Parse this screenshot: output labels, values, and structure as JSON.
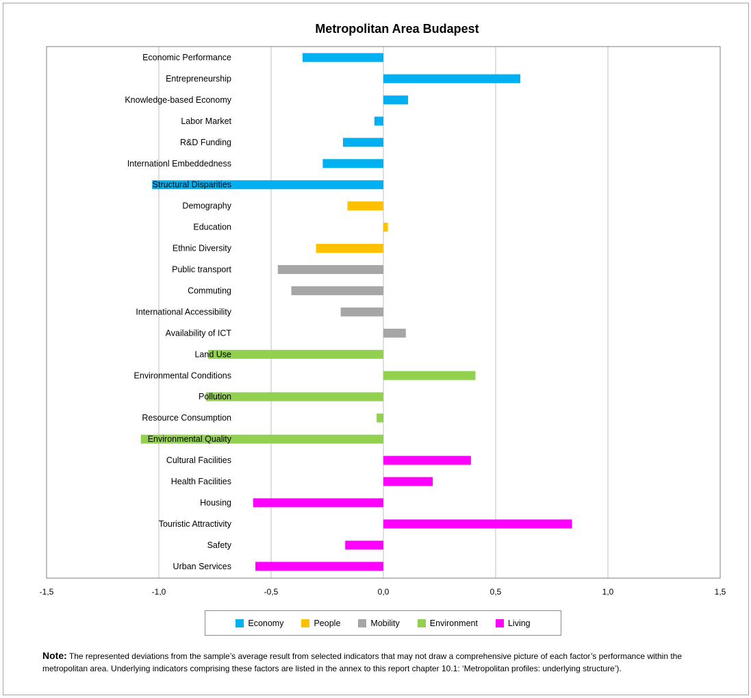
{
  "chart_data": {
    "type": "bar",
    "orientation": "horizontal",
    "title": "Metropolitan Area Budapest",
    "xlim": [
      -1.5,
      1.5
    ],
    "x_ticks": [
      "-1,5",
      "-1,0",
      "-0,5",
      "0,0",
      "0,5",
      "1,0",
      "1,5"
    ],
    "x_tick_values": [
      -1.5,
      -1.0,
      -0.5,
      0.0,
      0.5,
      1.0,
      1.5
    ],
    "grid": true,
    "legend_position": "bottom",
    "groups": [
      {
        "name": "Economy",
        "color": "#00b0f0"
      },
      {
        "name": "People",
        "color": "#ffc000"
      },
      {
        "name": "Mobility",
        "color": "#a6a6a6"
      },
      {
        "name": "Environment",
        "color": "#92d050"
      },
      {
        "name": "Living",
        "color": "#ff00ff"
      }
    ],
    "categories": [
      {
        "label": "Economic Performance",
        "group": "Economy",
        "value": -0.36
      },
      {
        "label": "Entrepreneurship",
        "group": "Economy",
        "value": 0.61
      },
      {
        "label": "Knowledge-based Economy",
        "group": "Economy",
        "value": 0.11
      },
      {
        "label": "Labor Market",
        "group": "Economy",
        "value": -0.04
      },
      {
        "label": "R&D Funding",
        "group": "Economy",
        "value": -0.18
      },
      {
        "label": "Internationl Embeddedness",
        "group": "Economy",
        "value": -0.27
      },
      {
        "label": "Structural Disparities",
        "group": "Economy",
        "value": -1.03
      },
      {
        "label": "Demography",
        "group": "People",
        "value": -0.16
      },
      {
        "label": "Education",
        "group": "People",
        "value": 0.02
      },
      {
        "label": "Ethnic Diversity",
        "group": "People",
        "value": -0.3
      },
      {
        "label": "Public transport",
        "group": "Mobility",
        "value": -0.47
      },
      {
        "label": "Commuting",
        "group": "Mobility",
        "value": -0.41
      },
      {
        "label": "International Accessibility",
        "group": "Mobility",
        "value": -0.19
      },
      {
        "label": "Availability of ICT",
        "group": "Mobility",
        "value": 0.1
      },
      {
        "label": "Land Use",
        "group": "Environment",
        "value": -0.78
      },
      {
        "label": "Environmental Conditions",
        "group": "Environment",
        "value": 0.41
      },
      {
        "label": "Pollution",
        "group": "Environment",
        "value": -0.79
      },
      {
        "label": "Resource Consumption",
        "group": "Environment",
        "value": -0.03
      },
      {
        "label": "Environmental Quality",
        "group": "Environment",
        "value": -1.08
      },
      {
        "label": "Cultural Facilities",
        "group": "Living",
        "value": 0.39
      },
      {
        "label": "Health Facilities",
        "group": "Living",
        "value": 0.22
      },
      {
        "label": "Housing",
        "group": "Living",
        "value": -0.58
      },
      {
        "label": "Touristic Attractivity",
        "group": "Living",
        "value": 0.84
      },
      {
        "label": "Safety",
        "group": "Living",
        "value": -0.17
      },
      {
        "label": "Urban Services",
        "group": "Living",
        "value": -0.57
      }
    ]
  },
  "note": {
    "label": "Note:",
    "text": "The represented deviations from the sample’s average result from selected indicators that may not draw a comprehensive picture of each factor’s performance within the metropolitan area. Underlying indicators comprising these factors are listed in the annex to this report chapter 10.1: ‘Metropolitan profiles: underlying structure’)."
  }
}
